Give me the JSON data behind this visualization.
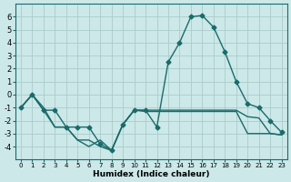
{
  "xlabel": "Humidex (Indice chaleur)",
  "x": [
    0,
    1,
    2,
    3,
    4,
    5,
    6,
    7,
    8,
    9,
    10,
    11,
    12,
    13,
    14,
    15,
    16,
    17,
    18,
    19,
    20,
    21,
    22,
    23
  ],
  "line1": [
    -1.0,
    0.0,
    -1.0,
    -2.5,
    -2.5,
    -3.5,
    -4.0,
    -3.5,
    -4.3,
    -2.3,
    -1.2,
    -1.2,
    -1.2,
    -1.2,
    -1.2,
    -1.2,
    -1.2,
    -1.2,
    -1.2,
    -1.2,
    -1.7,
    -1.8,
    -3.0,
    -3.1
  ],
  "line2": [
    -1.0,
    0.0,
    -1.2,
    -1.2,
    -2.5,
    -2.5,
    -2.5,
    -3.8,
    -4.3,
    -2.3,
    -1.2,
    -1.2,
    -2.5,
    2.5,
    4.0,
    6.0,
    6.1,
    5.2,
    3.3,
    1.0,
    -0.7,
    -1.0,
    -2.0,
    -2.9
  ],
  "line3": [
    -1.0,
    0.0,
    -1.2,
    -2.5,
    -2.5,
    -3.5,
    -3.5,
    -4.0,
    -4.3,
    -2.3,
    -1.2,
    -1.3,
    -1.3,
    -1.3,
    -1.3,
    -1.3,
    -1.3,
    -1.3,
    -1.3,
    -1.3,
    -3.0,
    -3.0,
    -3.0,
    -3.1
  ],
  "bg_color": "#cce8e8",
  "grid_color": "#aacccc",
  "line_color": "#1a6b6b",
  "ylim": [
    -5,
    7
  ],
  "xlim": [
    -0.5,
    23.5
  ],
  "yticks": [
    -4,
    -3,
    -2,
    -1,
    0,
    1,
    2,
    3,
    4,
    5,
    6
  ],
  "xticks": [
    0,
    1,
    2,
    3,
    4,
    5,
    6,
    7,
    8,
    9,
    10,
    11,
    12,
    13,
    14,
    15,
    16,
    17,
    18,
    19,
    20,
    21,
    22,
    23
  ],
  "marker": "D",
  "markersize": 2.5
}
